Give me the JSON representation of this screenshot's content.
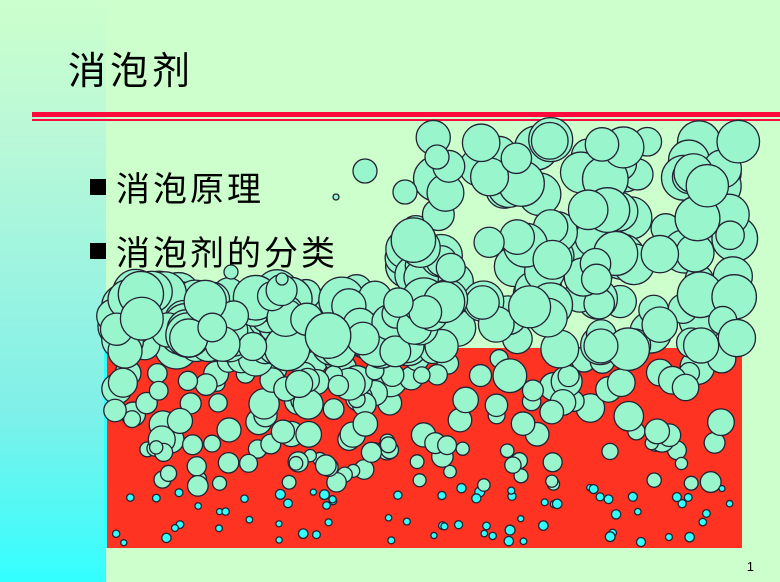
{
  "slide": {
    "title": "消泡剂",
    "bullets": [
      "消泡原理",
      "消泡剂的分类"
    ],
    "page_number": "1"
  },
  "colors": {
    "background": "#ccffcc",
    "rule": "#ff0a3c",
    "liquid": "#ff3322",
    "foam_bubble": "#99f5cc",
    "small_bubble": "#33ffff"
  }
}
